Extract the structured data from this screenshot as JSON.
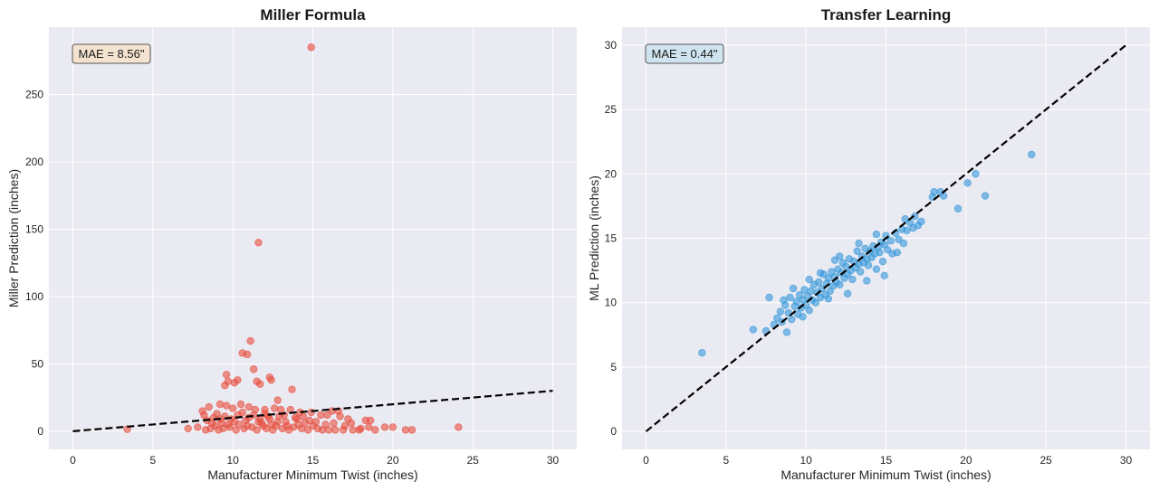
{
  "chart_data": [
    {
      "type": "scatter",
      "title": "Miller Formula",
      "xlabel": "Manufacturer Minimum Twist (inches)",
      "ylabel": "Miller Prediction (inches)",
      "xlim": [
        -1.5,
        31.5
      ],
      "ylim": [
        -13.5,
        300
      ],
      "xticks": [
        0,
        5,
        10,
        15,
        20,
        25,
        30
      ],
      "yticks": [
        0,
        50,
        100,
        150,
        200,
        250
      ],
      "grid": true,
      "annotation": "MAE = 8.56\"",
      "annotation_color": "#f3e3cf",
      "point_color": "#e74c3c",
      "reference_line": {
        "x": [
          0,
          30
        ],
        "y": [
          0,
          30
        ],
        "style": "dashed",
        "color": "#000000"
      },
      "points": [
        [
          14.9,
          285
        ],
        [
          11.6,
          140
        ],
        [
          11.1,
          67
        ],
        [
          10.6,
          58
        ],
        [
          10.9,
          57
        ],
        [
          11.3,
          46
        ],
        [
          9.6,
          42
        ],
        [
          9.7,
          37
        ],
        [
          10.3,
          38
        ],
        [
          10.1,
          36
        ],
        [
          12.3,
          40
        ],
        [
          12.4,
          38
        ],
        [
          11.5,
          37
        ],
        [
          11.7,
          35
        ],
        [
          9.5,
          34
        ],
        [
          13.7,
          31
        ],
        [
          12.8,
          23
        ],
        [
          3.4,
          1.5
        ],
        [
          24.1,
          3
        ],
        [
          21.2,
          1
        ],
        [
          20.8,
          1
        ],
        [
          20.0,
          3
        ],
        [
          19.5,
          3
        ],
        [
          18.6,
          8
        ],
        [
          18.3,
          8
        ],
        [
          18.5,
          3
        ],
        [
          17.4,
          6
        ],
        [
          17.0,
          4
        ],
        [
          16.6,
          15
        ],
        [
          16.2,
          15
        ],
        [
          15.9,
          12
        ],
        [
          7.2,
          2
        ],
        [
          7.8,
          3
        ],
        [
          8.2,
          12
        ],
        [
          8.1,
          15
        ],
        [
          8.5,
          18
        ],
        [
          9.2,
          20
        ],
        [
          9.6,
          19
        ],
        [
          10.0,
          17
        ],
        [
          10.5,
          20
        ],
        [
          11.0,
          18
        ],
        [
          11.4,
          16
        ],
        [
          12.0,
          16
        ],
        [
          12.6,
          17
        ],
        [
          13.0,
          16
        ],
        [
          13.6,
          16
        ],
        [
          14.2,
          14
        ],
        [
          14.9,
          14
        ],
        [
          15.5,
          12
        ],
        [
          8.3,
          1
        ],
        [
          8.6,
          2
        ],
        [
          8.9,
          4
        ],
        [
          9.1,
          1
        ],
        [
          9.3,
          6
        ],
        [
          9.4,
          2
        ],
        [
          9.8,
          3
        ],
        [
          10.2,
          1
        ],
        [
          10.4,
          5
        ],
        [
          10.7,
          2
        ],
        [
          10.8,
          8
        ],
        [
          11.2,
          3
        ],
        [
          11.5,
          1
        ],
        [
          11.8,
          6
        ],
        [
          12.1,
          2
        ],
        [
          12.3,
          9
        ],
        [
          12.5,
          1
        ],
        [
          12.7,
          4
        ],
        [
          12.9,
          11
        ],
        [
          13.1,
          2
        ],
        [
          13.3,
          7
        ],
        [
          13.5,
          1
        ],
        [
          13.8,
          3
        ],
        [
          14.0,
          9
        ],
        [
          14.3,
          2
        ],
        [
          14.5,
          6
        ],
        [
          14.7,
          1
        ],
        [
          15.0,
          4
        ],
        [
          15.3,
          2
        ],
        [
          15.6,
          1
        ],
        [
          16.0,
          1
        ],
        [
          16.4,
          1
        ],
        [
          16.9,
          1
        ],
        [
          17.5,
          1
        ],
        [
          17.9,
          1
        ],
        [
          8.4,
          8
        ],
        [
          8.8,
          10
        ],
        [
          9.0,
          13
        ],
        [
          9.5,
          11
        ],
        [
          9.9,
          9
        ],
        [
          10.3,
          12
        ],
        [
          10.6,
          14
        ],
        [
          11.0,
          10
        ],
        [
          11.3,
          12
        ],
        [
          11.7,
          9
        ],
        [
          12.2,
          11
        ],
        [
          12.8,
          7
        ],
        [
          13.2,
          12
        ],
        [
          13.9,
          10
        ],
        [
          14.4,
          11
        ],
        [
          14.8,
          8
        ],
        [
          15.2,
          7
        ],
        [
          9.7,
          5
        ],
        [
          10.9,
          4
        ],
        [
          11.9,
          4
        ],
        [
          12.4,
          5
        ],
        [
          13.4,
          4
        ],
        [
          14.1,
          5
        ],
        [
          10.1,
          7
        ],
        [
          11.6,
          7
        ],
        [
          12.0,
          13
        ],
        [
          8.7,
          6
        ],
        [
          9.2,
          9
        ],
        [
          15.8,
          5
        ],
        [
          16.3,
          6
        ],
        [
          16.7,
          11
        ],
        [
          17.2,
          9
        ],
        [
          18.0,
          2
        ],
        [
          18.9,
          1
        ]
      ]
    },
    {
      "type": "scatter",
      "title": "Transfer Learning",
      "xlabel": "Manufacturer Minimum Twist (inches)",
      "ylabel": "ML Prediction (inches)",
      "xlim": [
        -1.5,
        31.5
      ],
      "ylim": [
        -1.4,
        31.4
      ],
      "xticks": [
        0,
        5,
        10,
        15,
        20,
        25,
        30
      ],
      "yticks": [
        0,
        5,
        10,
        15,
        20,
        25,
        30
      ],
      "grid": true,
      "annotation": "MAE = 0.44\"",
      "annotation_color": "#cfe4ee",
      "point_color": "#3498db",
      "reference_line": {
        "x": [
          0,
          30
        ],
        "y": [
          0,
          30
        ],
        "style": "dashed",
        "color": "#000000"
      },
      "points": [
        [
          3.5,
          6.1
        ],
        [
          24.1,
          21.5
        ],
        [
          21.2,
          18.3
        ],
        [
          20.6,
          20.0
        ],
        [
          20.1,
          19.3
        ],
        [
          19.5,
          17.3
        ],
        [
          18.4,
          18.6
        ],
        [
          18.0,
          18.6
        ],
        [
          17.9,
          18.2
        ],
        [
          18.6,
          18.3
        ],
        [
          16.7,
          15.8
        ],
        [
          17.2,
          16.3
        ],
        [
          16.2,
          16.5
        ],
        [
          6.7,
          7.9
        ],
        [
          7.7,
          10.4
        ],
        [
          8.8,
          7.7
        ],
        [
          7.5,
          7.8
        ],
        [
          8.0,
          8.3
        ],
        [
          8.2,
          8.8
        ],
        [
          8.4,
          9.3
        ],
        [
          8.5,
          8.5
        ],
        [
          8.7,
          9.8
        ],
        [
          8.9,
          9.2
        ],
        [
          9.0,
          10.4
        ],
        [
          9.1,
          8.7
        ],
        [
          9.3,
          9.7
        ],
        [
          9.4,
          10.1
        ],
        [
          9.5,
          9.1
        ],
        [
          9.6,
          10.6
        ],
        [
          9.7,
          9.6
        ],
        [
          9.8,
          10.2
        ],
        [
          9.9,
          11.0
        ],
        [
          10.0,
          9.8
        ],
        [
          10.1,
          10.5
        ],
        [
          10.2,
          9.4
        ],
        [
          10.3,
          10.9
        ],
        [
          10.4,
          10.2
        ],
        [
          10.5,
          11.4
        ],
        [
          10.6,
          10.0
        ],
        [
          10.7,
          10.8
        ],
        [
          10.8,
          11.6
        ],
        [
          10.9,
          10.4
        ],
        [
          11.0,
          11.1
        ],
        [
          11.1,
          12.2
        ],
        [
          11.2,
          10.6
        ],
        [
          11.3,
          11.5
        ],
        [
          11.4,
          11.9
        ],
        [
          11.5,
          10.9
        ],
        [
          11.6,
          12.4
        ],
        [
          11.7,
          11.3
        ],
        [
          11.8,
          12.0
        ],
        [
          11.9,
          11.6
        ],
        [
          12.0,
          12.6
        ],
        [
          12.1,
          11.4
        ],
        [
          12.2,
          12.3
        ],
        [
          12.3,
          13.1
        ],
        [
          12.4,
          11.9
        ],
        [
          12.5,
          12.8
        ],
        [
          12.6,
          12.2
        ],
        [
          12.7,
          13.4
        ],
        [
          12.8,
          12.5
        ],
        [
          12.9,
          11.8
        ],
        [
          13.0,
          13.2
        ],
        [
          13.1,
          12.7
        ],
        [
          13.2,
          14.0
        ],
        [
          13.3,
          13.0
        ],
        [
          13.4,
          12.4
        ],
        [
          13.5,
          13.6
        ],
        [
          13.6,
          13.1
        ],
        [
          13.7,
          14.2
        ],
        [
          13.8,
          13.4
        ],
        [
          13.9,
          12.9
        ],
        [
          14.0,
          14.0
        ],
        [
          14.1,
          13.5
        ],
        [
          14.2,
          14.4
        ],
        [
          14.3,
          13.8
        ],
        [
          14.4,
          12.6
        ],
        [
          14.5,
          14.3
        ],
        [
          14.6,
          13.9
        ],
        [
          14.7,
          14.7
        ],
        [
          14.8,
          13.2
        ],
        [
          14.9,
          14.5
        ],
        [
          15.0,
          15.2
        ],
        [
          15.1,
          14.1
        ],
        [
          15.3,
          14.8
        ],
        [
          15.4,
          13.8
        ],
        [
          15.6,
          15.4
        ],
        [
          15.8,
          14.9
        ],
        [
          16.0,
          15.7
        ],
        [
          16.1,
          14.6
        ],
        [
          16.3,
          15.6
        ],
        [
          16.5,
          16.2
        ],
        [
          16.8,
          16.7
        ],
        [
          17.0,
          16.0
        ],
        [
          12.6,
          10.7
        ],
        [
          11.8,
          13.3
        ],
        [
          10.9,
          12.3
        ],
        [
          13.8,
          11.7
        ],
        [
          9.2,
          11.1
        ],
        [
          14.9,
          12.1
        ],
        [
          10.2,
          11.8
        ],
        [
          11.4,
          10.3
        ],
        [
          12.1,
          13.6
        ],
        [
          13.3,
          14.6
        ],
        [
          8.6,
          10.2
        ],
        [
          9.8,
          8.9
        ],
        [
          14.4,
          15.3
        ],
        [
          15.7,
          13.9
        ]
      ]
    }
  ]
}
